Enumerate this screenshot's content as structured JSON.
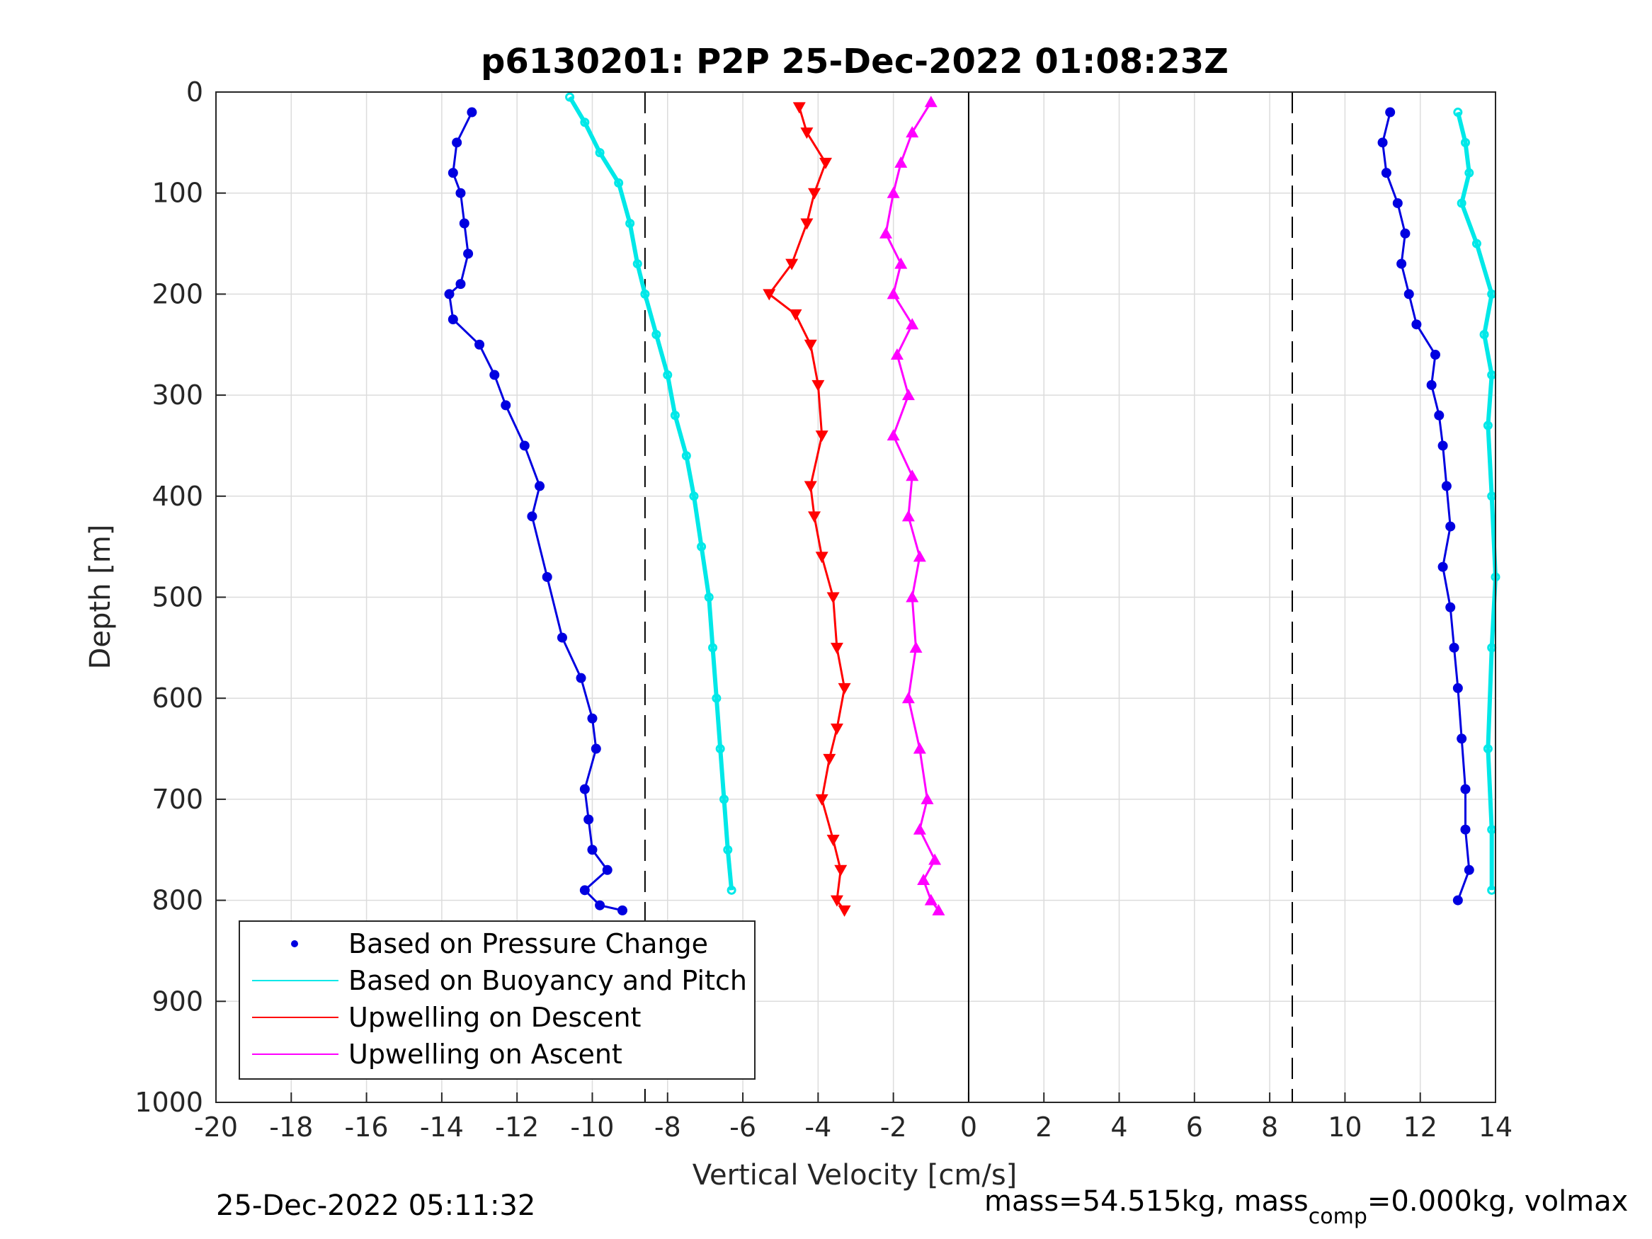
{
  "chart_data": {
    "type": "scatter",
    "title": "p6130201: P2P 25-Dec-2022 01:08:23Z",
    "xlabel": "Vertical Velocity [cm/s]",
    "ylabel": "Depth [m]",
    "xlim": [
      -20,
      14
    ],
    "ylim": [
      0,
      1000
    ],
    "y_reversed": true,
    "grid": true,
    "x_ticks": [
      "-20",
      "-18",
      "-16",
      "-14",
      "-12",
      "-10",
      "-8",
      "-6",
      "-4",
      "-2",
      "0",
      "2",
      "4",
      "6",
      "8",
      "10",
      "12",
      "14"
    ],
    "y_ticks": [
      "0",
      "100",
      "200",
      "300",
      "400",
      "500",
      "600",
      "700",
      "800",
      "900",
      "1000"
    ],
    "reference_lines": [
      {
        "style": "dashed",
        "x": -8.6
      },
      {
        "style": "dashed",
        "x": 8.6
      },
      {
        "style": "solid",
        "x": 0
      }
    ],
    "legend_position": "bottom-left",
    "series": [
      {
        "name": "Based on Pressure Change",
        "color": "#0000e0",
        "marker": "dot",
        "segments": [
          {
            "x": [
              -13.2,
              -13.6,
              -13.7,
              -13.5,
              -13.4,
              -13.3,
              -13.5,
              -13.8,
              -13.7,
              -13.0,
              -12.6,
              -12.3,
              -11.8,
              -11.4,
              -11.6,
              -11.2,
              -10.8,
              -10.3,
              -10.0,
              -9.9,
              -10.2,
              -10.1,
              -10.0,
              -9.6,
              -10.2,
              -9.8,
              -9.2
            ],
            "y": [
              20,
              50,
              80,
              100,
              130,
              160,
              190,
              200,
              225,
              250,
              280,
              310,
              350,
              390,
              420,
              480,
              540,
              580,
              620,
              650,
              690,
              720,
              750,
              770,
              790,
              805,
              810
            ]
          },
          {
            "x": [
              11.2,
              11.0,
              11.1,
              11.4,
              11.6,
              11.5,
              11.7,
              11.9,
              12.4,
              12.3,
              12.5,
              12.6,
              12.7,
              12.8,
              12.6,
              12.8,
              12.9,
              13.0,
              13.1,
              13.2,
              13.2,
              13.3,
              13.0
            ],
            "y": [
              20,
              50,
              80,
              110,
              140,
              170,
              200,
              230,
              260,
              290,
              320,
              350,
              390,
              430,
              470,
              510,
              550,
              590,
              640,
              690,
              730,
              770,
              800
            ]
          }
        ]
      },
      {
        "name": "Based on Buoyancy and Pitch",
        "color": "#00e8e8",
        "marker": "line",
        "segments": [
          {
            "x": [
              -10.6,
              -10.2,
              -9.8,
              -9.3,
              -9.0,
              -8.8,
              -8.6,
              -8.3,
              -8.0,
              -7.8,
              -7.5,
              -7.3,
              -7.1,
              -6.9,
              -6.8,
              -6.7,
              -6.6,
              -6.5,
              -6.4,
              -6.3
            ],
            "y": [
              5,
              30,
              60,
              90,
              130,
              170,
              200,
              240,
              280,
              320,
              360,
              400,
              450,
              500,
              550,
              600,
              650,
              700,
              750,
              790
            ]
          },
          {
            "x": [
              13.0,
              13.2,
              13.3,
              13.1,
              13.5,
              13.9,
              13.7,
              13.9,
              13.8,
              13.9,
              14.0,
              13.9,
              13.8,
              13.9,
              13.9
            ],
            "y": [
              20,
              50,
              80,
              110,
              150,
              200,
              240,
              280,
              330,
              400,
              480,
              550,
              650,
              730,
              790
            ]
          }
        ]
      },
      {
        "name": "Upwelling on Descent",
        "color": "#ff0000",
        "marker": "triangle-down",
        "segments": [
          {
            "x": [
              -4.5,
              -4.3,
              -3.8,
              -4.1,
              -4.3,
              -4.7,
              -5.3,
              -4.6,
              -4.2,
              -4.0,
              -3.9,
              -4.2,
              -4.1,
              -3.9,
              -3.6,
              -3.5,
              -3.3,
              -3.5,
              -3.7,
              -3.9,
              -3.6,
              -3.4,
              -3.5,
              -3.3
            ],
            "y": [
              15,
              40,
              70,
              100,
              130,
              170,
              200,
              220,
              250,
              290,
              340,
              390,
              420,
              460,
              500,
              550,
              590,
              630,
              660,
              700,
              740,
              770,
              800,
              810
            ]
          }
        ]
      },
      {
        "name": "Upwelling on Ascent",
        "color": "#ff00ff",
        "marker": "triangle-up",
        "segments": [
          {
            "x": [
              -1.0,
              -1.5,
              -1.8,
              -2.0,
              -2.2,
              -1.8,
              -2.0,
              -1.5,
              -1.9,
              -1.6,
              -2.0,
              -1.5,
              -1.6,
              -1.3,
              -1.5,
              -1.4,
              -1.6,
              -1.3,
              -1.1,
              -1.3,
              -0.9,
              -1.2,
              -1.0,
              -0.8
            ],
            "y": [
              10,
              40,
              70,
              100,
              140,
              170,
              200,
              230,
              260,
              300,
              340,
              380,
              420,
              460,
              500,
              550,
              600,
              650,
              700,
              730,
              760,
              780,
              800,
              810
            ]
          }
        ]
      }
    ]
  },
  "footer": {
    "timestamp": "25-Dec-2022 05:11:32",
    "mass_prefix": "mass=54.515kg, mass",
    "mass_sub": "comp",
    "mass_suffix": "=0.000kg, volmax"
  }
}
